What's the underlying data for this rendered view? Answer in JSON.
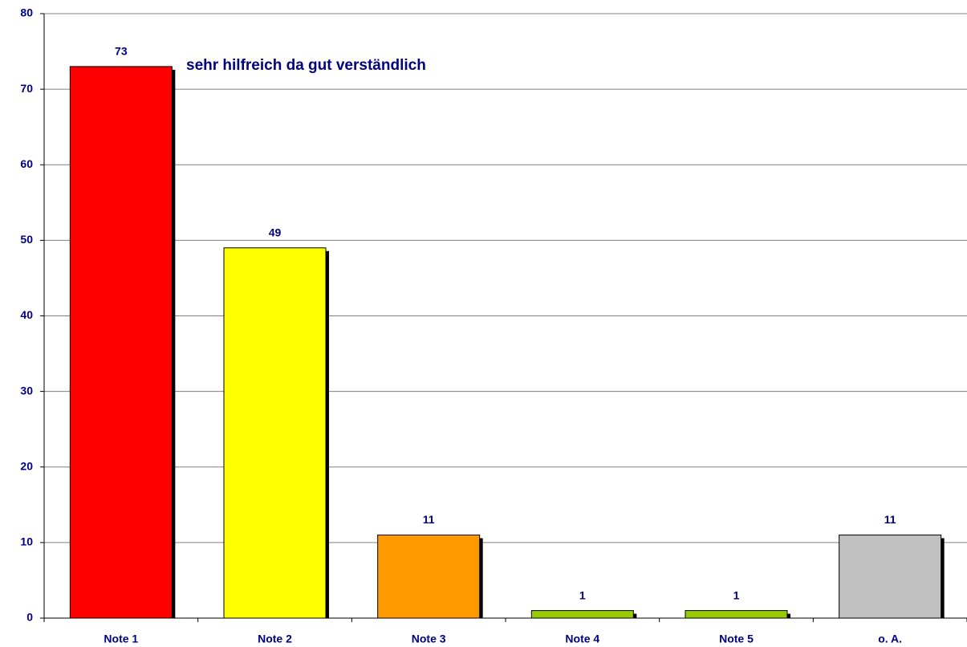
{
  "chart_data": {
    "type": "bar",
    "annotation": "sehr hilfreich da gut verständlich",
    "categories": [
      "Note 1",
      "Note 2",
      "Note 3",
      "Note 4",
      "Note 5",
      "o. A."
    ],
    "values": [
      73,
      49,
      11,
      1,
      1,
      11
    ],
    "colors": [
      "#ff0000",
      "#ffff00",
      "#ff9900",
      "#99cc00",
      "#99cc00",
      "#c0c0c0"
    ],
    "ylim": [
      0,
      80
    ],
    "yticks": [
      0,
      10,
      20,
      30,
      40,
      50,
      60,
      70,
      80
    ],
    "grid": true
  }
}
